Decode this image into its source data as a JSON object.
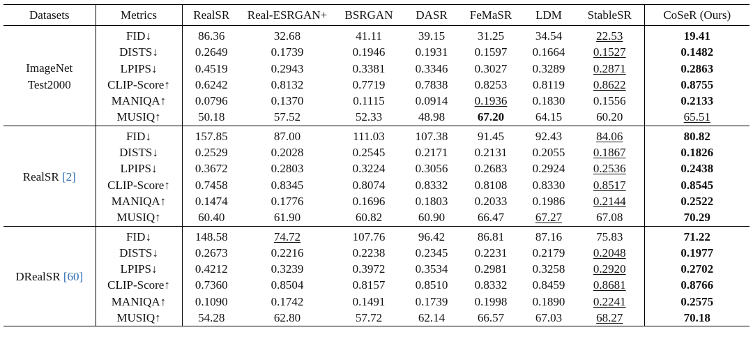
{
  "table": {
    "headers": [
      "Datasets",
      "Metrics",
      "RealSR",
      "Real-ESRGAN+",
      "BSRGAN",
      "DASR",
      "FeMaSR",
      "LDM",
      "StableSR",
      "CoSeR (Ours)"
    ],
    "groups": [
      {
        "dataset_lines": [
          "ImageNet",
          "Test2000"
        ],
        "dataset_ref": "",
        "rows": [
          {
            "metric": "FID↓",
            "values": [
              "86.36",
              "32.68",
              "41.11",
              "39.15",
              "31.25",
              "34.54",
              "22.53",
              "19.41"
            ],
            "bold": [
              7
            ],
            "underline": [
              6
            ]
          },
          {
            "metric": "DISTS↓",
            "values": [
              "0.2649",
              "0.1739",
              "0.1946",
              "0.1931",
              "0.1597",
              "0.1664",
              "0.1527",
              "0.1482"
            ],
            "bold": [
              7
            ],
            "underline": [
              6
            ]
          },
          {
            "metric": "LPIPS↓",
            "values": [
              "0.4519",
              "0.2943",
              "0.3381",
              "0.3346",
              "0.3027",
              "0.3289",
              "0.2871",
              "0.2863"
            ],
            "bold": [
              7
            ],
            "underline": [
              6
            ]
          },
          {
            "metric": "CLIP-Score↑",
            "values": [
              "0.6242",
              "0.8132",
              "0.7719",
              "0.7838",
              "0.8253",
              "0.8119",
              "0.8622",
              "0.8755"
            ],
            "bold": [
              7
            ],
            "underline": [
              6
            ]
          },
          {
            "metric": "MANIQA↑",
            "values": [
              "0.0796",
              "0.1370",
              "0.1115",
              "0.0914",
              "0.1936",
              "0.1830",
              "0.1556",
              "0.2133"
            ],
            "bold": [
              7
            ],
            "underline": [
              4
            ]
          },
          {
            "metric": "MUSIQ↑",
            "values": [
              "50.18",
              "57.52",
              "52.33",
              "48.98",
              "67.20",
              "64.15",
              "60.20",
              "65.51"
            ],
            "bold": [
              4
            ],
            "underline": [
              7
            ]
          }
        ]
      },
      {
        "dataset_lines": [
          "RealSR"
        ],
        "dataset_ref": "[2]",
        "rows": [
          {
            "metric": "FID↓",
            "values": [
              "157.85",
              "87.00",
              "111.03",
              "107.38",
              "91.45",
              "92.43",
              "84.06",
              "80.82"
            ],
            "bold": [
              7
            ],
            "underline": [
              6
            ]
          },
          {
            "metric": "DISTS↓",
            "values": [
              "0.2529",
              "0.2028",
              "0.2545",
              "0.2171",
              "0.2131",
              "0.2055",
              "0.1867",
              "0.1826"
            ],
            "bold": [
              7
            ],
            "underline": [
              6
            ]
          },
          {
            "metric": "LPIPS↓",
            "values": [
              "0.3672",
              "0.2803",
              "0.3224",
              "0.3056",
              "0.2683",
              "0.2924",
              "0.2536",
              "0.2438"
            ],
            "bold": [
              7
            ],
            "underline": [
              6
            ]
          },
          {
            "metric": "CLIP-Score↑",
            "values": [
              "0.7458",
              "0.8345",
              "0.8074",
              "0.8332",
              "0.8108",
              "0.8330",
              "0.8517",
              "0.8545"
            ],
            "bold": [
              7
            ],
            "underline": [
              6
            ]
          },
          {
            "metric": "MANIQA↑",
            "values": [
              "0.1474",
              "0.1776",
              "0.1696",
              "0.1803",
              "0.2033",
              "0.1986",
              "0.2144",
              "0.2522"
            ],
            "bold": [
              7
            ],
            "underline": [
              6
            ]
          },
          {
            "metric": "MUSIQ↑",
            "values": [
              "60.40",
              "61.90",
              "60.82",
              "60.90",
              "66.47",
              "67.27",
              "67.08",
              "70.29"
            ],
            "bold": [
              7
            ],
            "underline": [
              5
            ]
          }
        ]
      },
      {
        "dataset_lines": [
          "DRealSR"
        ],
        "dataset_ref": "[60]",
        "rows": [
          {
            "metric": "FID↓",
            "values": [
              "148.58",
              "74.72",
              "107.76",
              "96.42",
              "86.81",
              "87.16",
              "75.83",
              "71.22"
            ],
            "bold": [
              7
            ],
            "underline": [
              1
            ]
          },
          {
            "metric": "DISTS↓",
            "values": [
              "0.2673",
              "0.2216",
              "0.2238",
              "0.2345",
              "0.2231",
              "0.2179",
              "0.2048",
              "0.1977"
            ],
            "bold": [
              7
            ],
            "underline": [
              6
            ]
          },
          {
            "metric": "LPIPS↓",
            "values": [
              "0.4212",
              "0.3239",
              "0.3972",
              "0.3534",
              "0.2981",
              "0.3258",
              "0.2920",
              "0.2702"
            ],
            "bold": [
              7
            ],
            "underline": [
              6
            ]
          },
          {
            "metric": "CLIP-Score↑",
            "values": [
              "0.7360",
              "0.8504",
              "0.8157",
              "0.8510",
              "0.8332",
              "0.8459",
              "0.8681",
              "0.8766"
            ],
            "bold": [
              7
            ],
            "underline": [
              6
            ]
          },
          {
            "metric": "MANIQA↑",
            "values": [
              "0.1090",
              "0.1742",
              "0.1491",
              "0.1739",
              "0.1998",
              "0.1890",
              "0.2241",
              "0.2575"
            ],
            "bold": [
              7
            ],
            "underline": [
              6
            ]
          },
          {
            "metric": "MUSIQ↑",
            "values": [
              "54.28",
              "62.80",
              "57.72",
              "62.14",
              "66.57",
              "67.03",
              "68.27",
              "70.18"
            ],
            "bold": [
              7
            ],
            "underline": [
              6
            ]
          }
        ]
      }
    ]
  }
}
